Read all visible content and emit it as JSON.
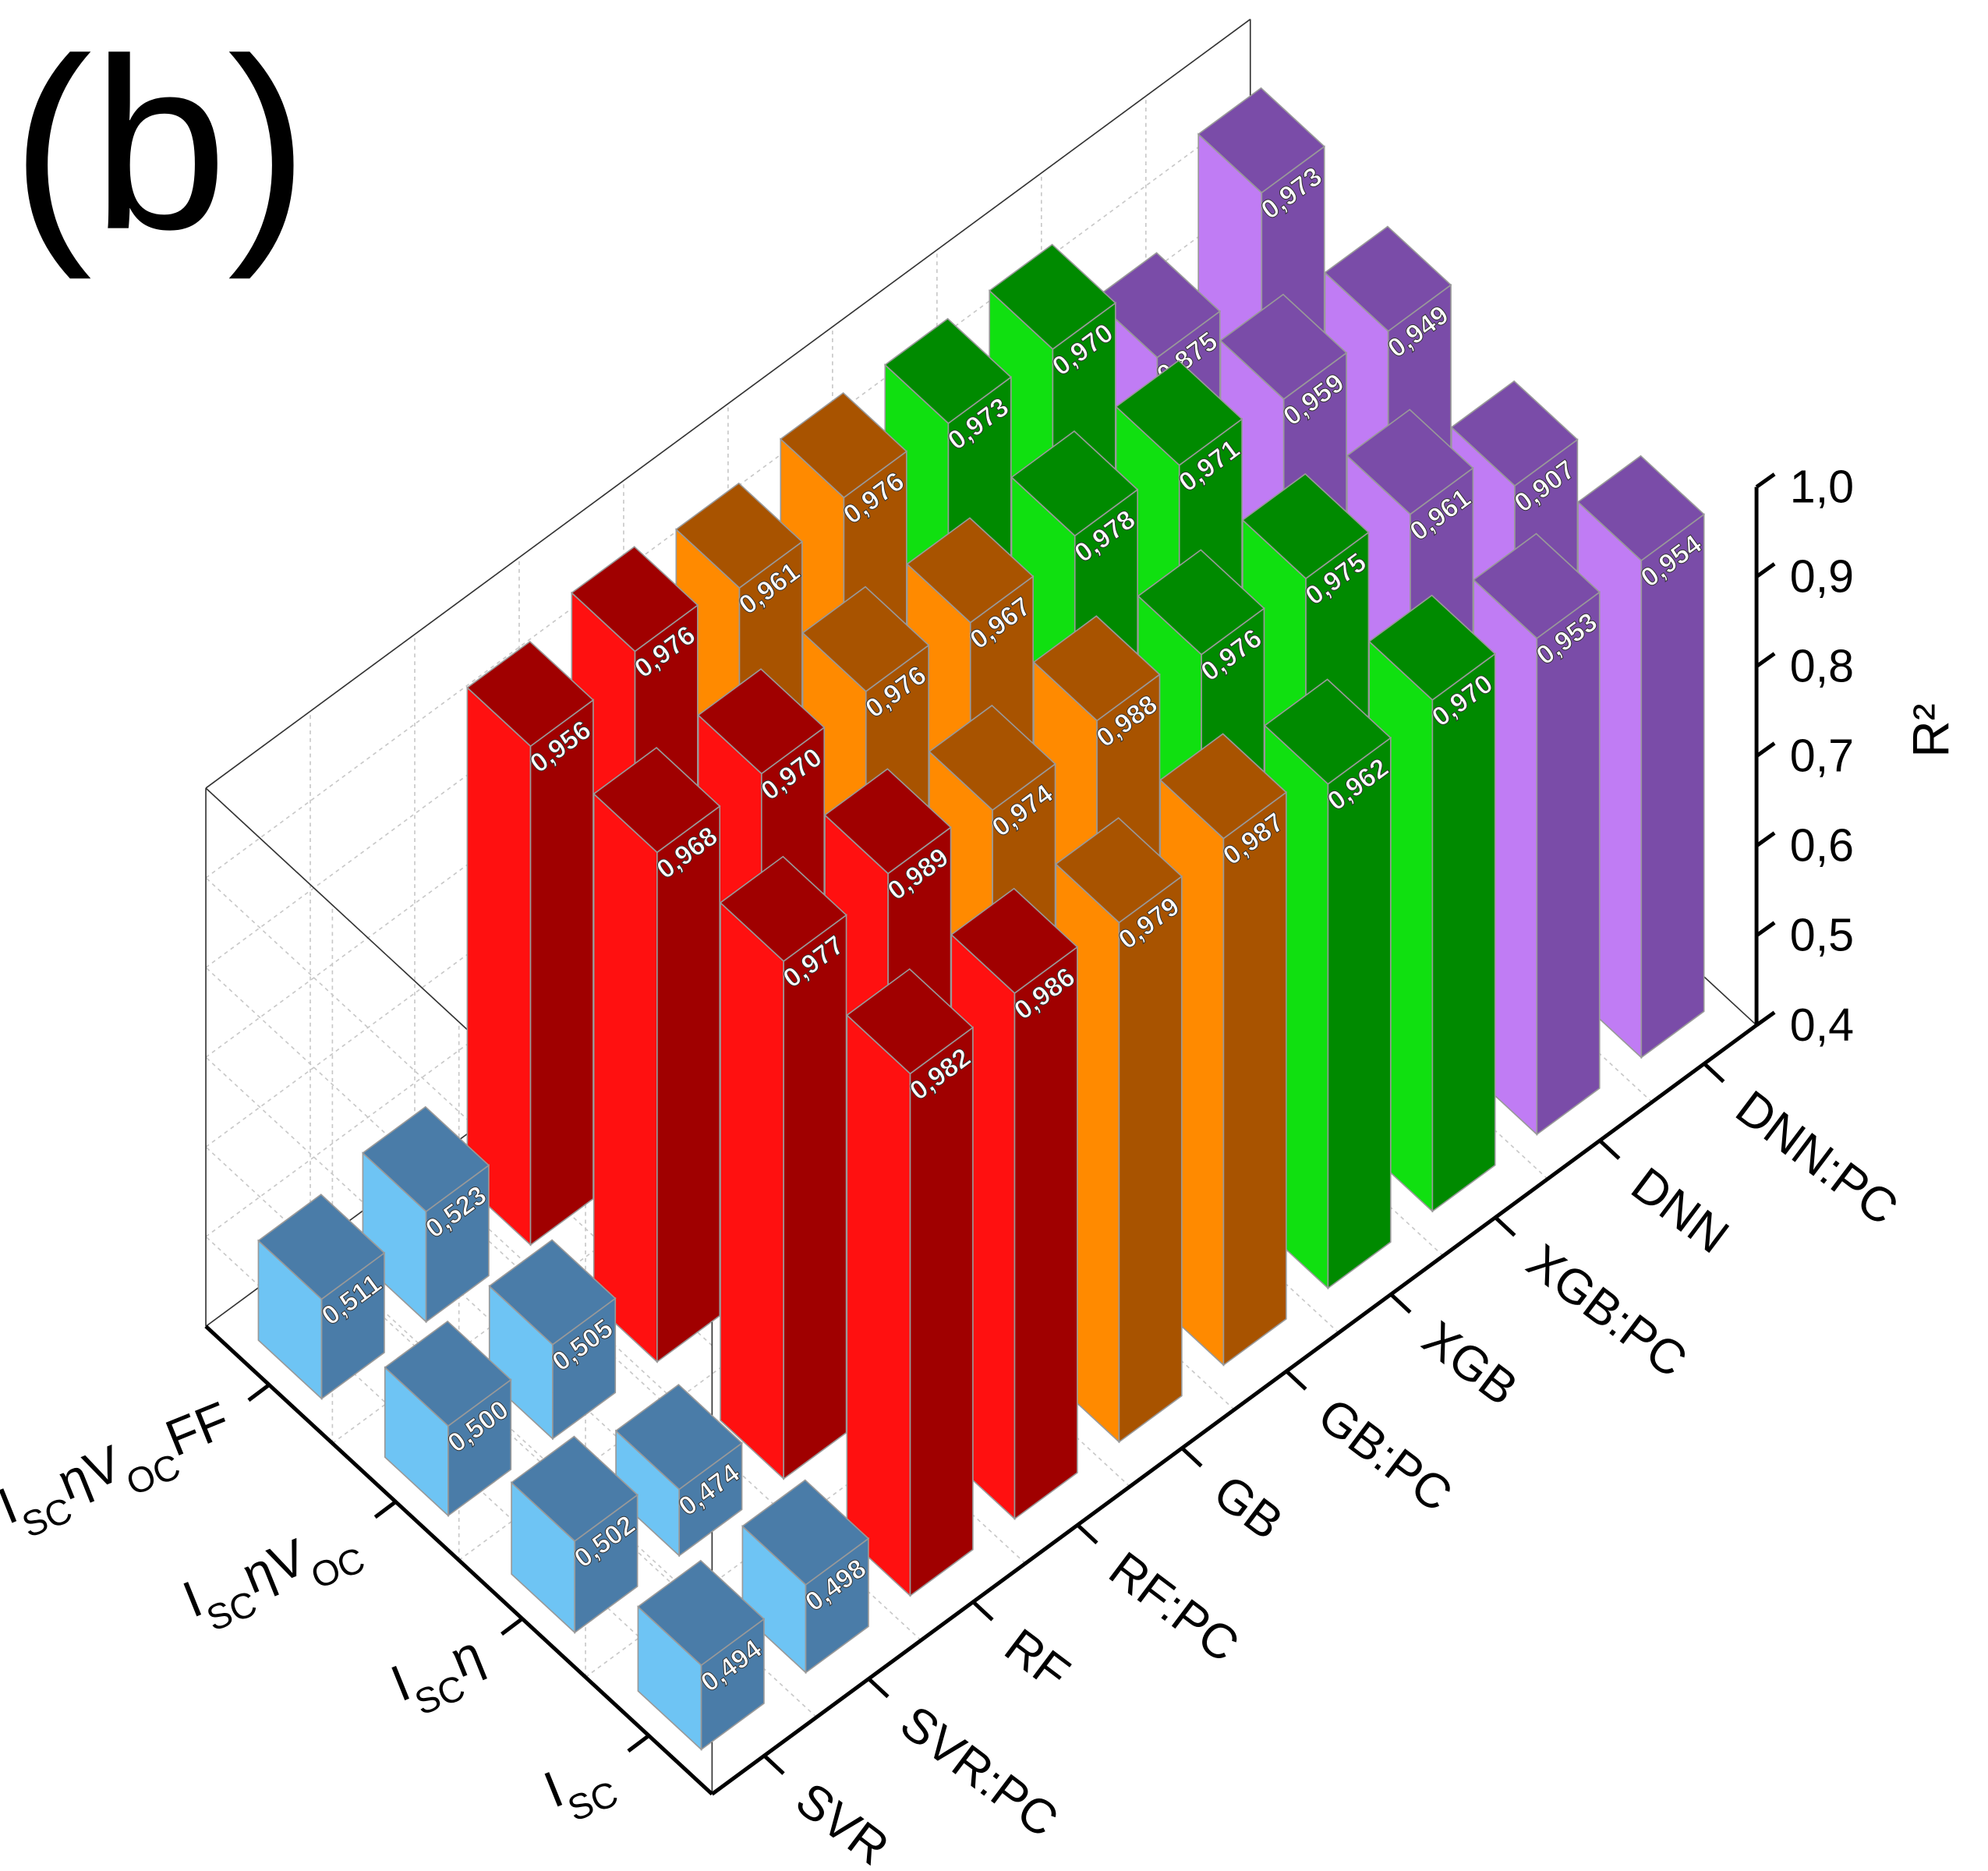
{
  "chart_data": {
    "type": "bar3d",
    "title": "(b)",
    "zlabel": "R²",
    "categories": [
      "SVR",
      "SVR:PC",
      "RF",
      "RF:PC",
      "GB",
      "GB:PC",
      "XGB",
      "XGB:PC",
      "DNN",
      "DNN:PC"
    ],
    "colors": [
      "#4a7ca8",
      "#4a7ca8",
      "#a00000",
      "#a00000",
      "#a85300",
      "#a85300",
      "#008a00",
      "#008a00",
      "#7a4ca8",
      "#7a4ca8"
    ],
    "side_colors": [
      "#6ec4f4",
      "#6ec4f4",
      "#ff1010",
      "#ff1010",
      "#ff8a00",
      "#ff8a00",
      "#10e010",
      "#10e010",
      "#c07cf4",
      "#c07cf4"
    ],
    "rows": [
      {
        "label": [
          {
            "text": "I"
          },
          {
            "text": "SC",
            "sub": true
          }
        ],
        "values": [
          0.494,
          0.498,
          0.982,
          0.986,
          0.979,
          0.987,
          0.962,
          0.97,
          0.953,
          0.954
        ],
        "value_labels": [
          "0,494",
          "0,498",
          "0,982",
          "0,986",
          "0,979",
          "0,987",
          "0,962",
          "0,970",
          "0,953",
          "0,954"
        ]
      },
      {
        "label": [
          {
            "text": "I"
          },
          {
            "text": "SC",
            "sub": true
          },
          {
            "text": "η"
          }
        ],
        "values": [
          0.502,
          0.474,
          0.977,
          0.989,
          0.974,
          0.988,
          0.976,
          0.975,
          0.961,
          0.907
        ],
        "value_labels": [
          "0,502",
          "0,474",
          "0,977",
          "0,989",
          "0,974",
          "0,988",
          "0,976",
          "0,975",
          "0,961",
          "0,907"
        ]
      },
      {
        "label": [
          {
            "text": "I"
          },
          {
            "text": "SC",
            "sub": true
          },
          {
            "text": "ηV"
          },
          {
            "text": "OC",
            "sub": true
          }
        ],
        "values": [
          0.5,
          0.505,
          0.968,
          0.97,
          0.976,
          0.967,
          0.978,
          0.971,
          0.959,
          0.949
        ],
        "value_labels": [
          "0,500",
          "0,505",
          "0,968",
          "0,970",
          "0,976",
          "0,967",
          "0,978",
          "0,971",
          "0,959",
          "0,949"
        ]
      },
      {
        "label": [
          {
            "text": "I"
          },
          {
            "text": "SC",
            "sub": true
          },
          {
            "text": "ηV"
          },
          {
            "text": "OC",
            "sub": true
          },
          {
            "text": "FF"
          }
        ],
        "values": [
          0.511,
          0.523,
          0.956,
          0.976,
          0.961,
          0.976,
          0.973,
          0.97,
          0.875,
          0.973
        ],
        "value_labels": [
          "0,511",
          "0,523",
          "0,956",
          "0,976",
          "0,961",
          "0,976",
          "0,973",
          "0,970",
          "0,875",
          "0,973"
        ]
      }
    ],
    "zlim": [
      0.4,
      1.0
    ],
    "zticks": [
      {
        "value": 0.4,
        "label": "0,4"
      },
      {
        "value": 0.5,
        "label": "0,5"
      },
      {
        "value": 0.6,
        "label": "0,6"
      },
      {
        "value": 0.7,
        "label": "0,7"
      },
      {
        "value": 0.8,
        "label": "0,8"
      },
      {
        "value": 0.9,
        "label": "0,9"
      },
      {
        "value": 1.0,
        "label": "1,0"
      }
    ],
    "grid": true
  }
}
